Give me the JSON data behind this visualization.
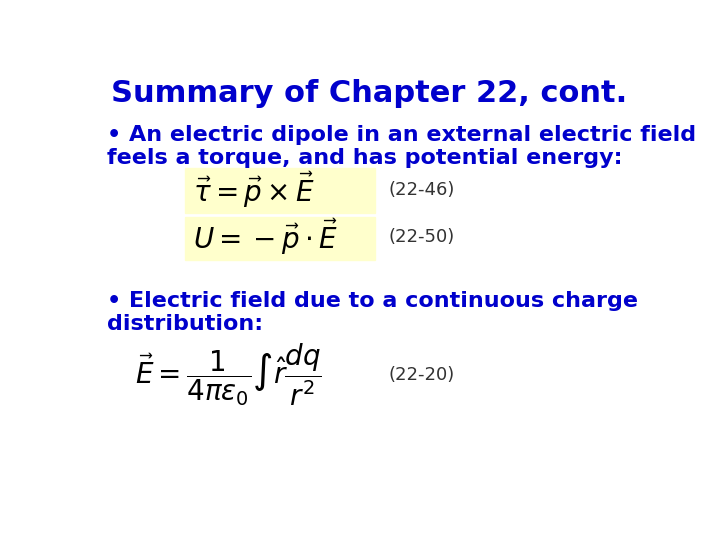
{
  "title": "Summary of Chapter 22, cont.",
  "title_color": "#0000CC",
  "title_fontsize": 22,
  "bg_color": "#FFFFFF",
  "text_color": "#0000CC",
  "eq_label_color": "#333333",
  "bullet1_line1": "• An electric dipole in an external electric field",
  "bullet1_line2": "feels a torque, and has potential energy:",
  "eq1_latex": "$\\vec{\\tau} = \\vec{p} \\times \\vec{E}$",
  "eq1_label": "(22-46)",
  "eq2_latex": "$U = -\\vec{p} \\cdot \\vec{E}$",
  "eq2_label": "(22-50)",
  "bullet2_line1": "• Electric field due to a continuous charge",
  "bullet2_line2": "distribution:",
  "eq3_latex": "$\\vec{E} = \\dfrac{1}{4\\pi\\varepsilon_0} \\int \\hat{r}\\dfrac{dq}{r^2}$",
  "eq3_label": "(22-20)",
  "eq_box_color": "#FFFFCC",
  "text_fontsize": 16,
  "eq_fontsize": 20,
  "eq_label_fontsize": 13
}
